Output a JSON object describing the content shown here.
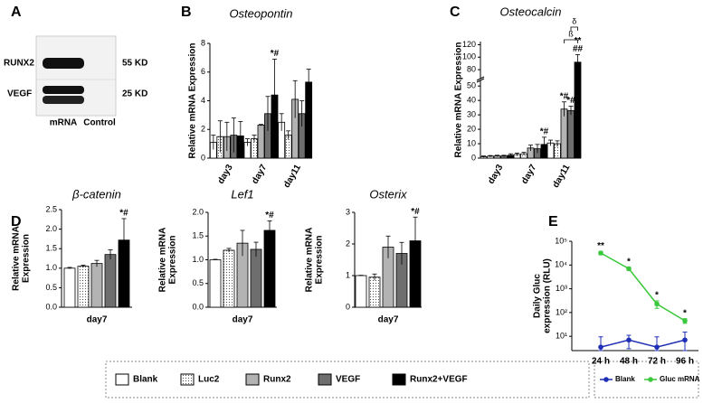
{
  "blot": {
    "panel": "A",
    "rows": [
      {
        "label": "RUNX2",
        "size": "55 KD"
      },
      {
        "label": "VEGF",
        "size": "25 KD"
      }
    ],
    "lanes": [
      "mRNA",
      "Control"
    ]
  },
  "chart_data": [
    {
      "type": "bar",
      "panel": "B",
      "title": "Osteopontin",
      "ylabel": "Relative mRNA Expression",
      "categories": [
        "day3",
        "day7",
        "day11"
      ],
      "ylim": [
        0,
        8
      ],
      "yticks": [
        0,
        2,
        4,
        6,
        8
      ],
      "series": [
        {
          "name": "Blank",
          "color": "#ffffff",
          "values": [
            1.1,
            1.1,
            2.5
          ],
          "errors": [
            0.5,
            0.25,
            0.6
          ]
        },
        {
          "name": "Luc2",
          "color": "#ffffff",
          "pattern": "dots",
          "values": [
            1.5,
            1.35,
            1.6
          ],
          "errors": [
            1.1,
            0.25,
            0.3
          ]
        },
        {
          "name": "Runx2",
          "color": "#b3b3b3",
          "values": [
            1.5,
            2.3,
            4.1
          ],
          "errors": [
            1.0,
            0.05,
            1.3
          ]
        },
        {
          "name": "VEGF",
          "color": "#6e6e6e",
          "values": [
            1.6,
            3.1,
            3.1
          ],
          "errors": [
            1.2,
            1.2,
            0.9
          ]
        },
        {
          "name": "Runx2+VEGF",
          "color": "#000000",
          "values": [
            1.55,
            4.4,
            5.3
          ],
          "errors": [
            1.0,
            2.5,
            0.9
          ],
          "annotations": [
            null,
            "*#",
            null
          ]
        }
      ]
    },
    {
      "type": "bar",
      "panel": "C",
      "title": "Osteocalcin",
      "ylabel": "Relative mRNA Expression",
      "categories": [
        "day3",
        "day7",
        "day11"
      ],
      "ylim": [
        0,
        125
      ],
      "ybreak": [
        52,
        70
      ],
      "yticks": [
        0,
        10,
        20,
        30,
        40,
        50,
        80,
        100,
        120
      ],
      "series": [
        {
          "name": "Blank",
          "color": "#ffffff",
          "values": [
            1,
            2.5,
            10.5
          ],
          "errors": [
            0.5,
            1,
            2
          ]
        },
        {
          "name": "Luc2",
          "color": "#ffffff",
          "pattern": "dots",
          "values": [
            1.3,
            3,
            10
          ],
          "errors": [
            0.5,
            1,
            2
          ]
        },
        {
          "name": "Runx2",
          "color": "#b3b3b3",
          "values": [
            1.5,
            7,
            34
          ],
          "errors": [
            0.5,
            2,
            5
          ],
          "annotations": [
            null,
            null,
            "*#"
          ]
        },
        {
          "name": "VEGF",
          "color": "#6e6e6e",
          "values": [
            1.5,
            6.5,
            33
          ],
          "errors": [
            0.5,
            3,
            3
          ],
          "annotations": [
            null,
            null,
            "*#"
          ]
        },
        {
          "name": "Runx2+VEGF",
          "color": "#000000",
          "values": [
            2,
            9.5,
            92
          ],
          "errors": [
            1,
            5,
            12
          ],
          "annotations": [
            null,
            "*#",
            [
              "**",
              "##"
            ]
          ]
        }
      ],
      "brackets": [
        {
          "label": "ß",
          "category": 2,
          "series": [
            2,
            4
          ]
        },
        {
          "label": "δ",
          "category": 2,
          "series": [
            3,
            4
          ]
        }
      ]
    },
    {
      "type": "bar",
      "panel": "D",
      "title": "β-catenin",
      "ylabel": [
        "Relative mRNA",
        "Expression"
      ],
      "categories": [
        "day7"
      ],
      "ylim": [
        0,
        2.5
      ],
      "yticks": [
        {
          "value": 0,
          "label": "0.0"
        },
        0.5,
        {
          "value": 1,
          "label": "1.0"
        },
        1.5,
        {
          "value": 2,
          "label": "2.0"
        },
        2.5
      ],
      "series": [
        {
          "name": "Blank",
          "color": "#ffffff",
          "values": [
            1.0
          ],
          "errors": [
            0.02
          ]
        },
        {
          "name": "Luc2",
          "color": "#ffffff",
          "pattern": "dots",
          "values": [
            1.05
          ],
          "errors": [
            0.03
          ]
        },
        {
          "name": "Runx2",
          "color": "#b3b3b3",
          "values": [
            1.12
          ],
          "errors": [
            0.08
          ]
        },
        {
          "name": "VEGF",
          "color": "#6e6e6e",
          "values": [
            1.35
          ],
          "errors": [
            0.12
          ]
        },
        {
          "name": "Runx2+VEGF",
          "color": "#000000",
          "values": [
            1.72
          ],
          "errors": [
            0.55
          ],
          "annotations": [
            "*#"
          ]
        }
      ]
    },
    {
      "type": "bar",
      "title": "Lef1",
      "ylabel": [
        "Relative mRNA",
        "Expression"
      ],
      "categories": [
        "day7"
      ],
      "ylim": [
        0,
        2
      ],
      "yticks": [
        {
          "value": 0,
          "label": "0.0"
        },
        0.5,
        {
          "value": 1,
          "label": "1.0"
        },
        1.5,
        {
          "value": 2,
          "label": "2.0"
        }
      ],
      "series": [
        {
          "name": "Blank",
          "color": "#ffffff",
          "values": [
            1.0
          ],
          "errors": [
            0.01
          ]
        },
        {
          "name": "Luc2",
          "color": "#ffffff",
          "pattern": "dots",
          "values": [
            1.2
          ],
          "errors": [
            0.04
          ]
        },
        {
          "name": "Runx2",
          "color": "#b3b3b3",
          "values": [
            1.35
          ],
          "errors": [
            0.27
          ]
        },
        {
          "name": "VEGF",
          "color": "#6e6e6e",
          "values": [
            1.22
          ],
          "errors": [
            0.15
          ]
        },
        {
          "name": "Runx2+VEGF",
          "color": "#000000",
          "values": [
            1.62
          ],
          "errors": [
            0.2
          ],
          "annotations": [
            "*#"
          ]
        }
      ]
    },
    {
      "type": "bar",
      "title": "Osterix",
      "ylabel": [
        "Relative mRNA",
        "Expression"
      ],
      "categories": [
        "day7"
      ],
      "ylim": [
        0,
        3
      ],
      "yticks": [
        0,
        1,
        2,
        3
      ],
      "series": [
        {
          "name": "Blank",
          "color": "#ffffff",
          "values": [
            1.0
          ],
          "errors": [
            0.01
          ]
        },
        {
          "name": "Luc2",
          "color": "#ffffff",
          "pattern": "dots",
          "values": [
            0.95
          ],
          "errors": [
            0.1
          ]
        },
        {
          "name": "Runx2",
          "color": "#b3b3b3",
          "values": [
            1.9
          ],
          "errors": [
            0.35
          ]
        },
        {
          "name": "VEGF",
          "color": "#6e6e6e",
          "values": [
            1.7
          ],
          "errors": [
            0.35
          ]
        },
        {
          "name": "Runx2+VEGF",
          "color": "#000000",
          "values": [
            2.1
          ],
          "errors": [
            0.75
          ],
          "annotations": [
            "*#"
          ]
        }
      ]
    },
    {
      "type": "line",
      "panel": "E",
      "ylabel": [
        "Daily Gluc",
        "expression (RLU)"
      ],
      "log": true,
      "categories": [
        "24 h",
        "48 h",
        "72 h",
        "96 h"
      ],
      "ylim": [
        2.5,
        100000
      ],
      "yticks": [
        {
          "value": 10,
          "label": "10¹"
        },
        {
          "value": 100,
          "label": "10²"
        },
        {
          "value": 1000,
          "label": "10³"
        },
        {
          "value": 10000,
          "label": "10⁴"
        },
        {
          "value": 100000,
          "label": "10⁵"
        }
      ],
      "series": [
        {
          "name": "Blank",
          "color": "#1f2fb5",
          "values": [
            3.5,
            7,
            3.5,
            7
          ],
          "errors": [
            6,
            4,
            6,
            8
          ]
        },
        {
          "name": "Gluc mRNA",
          "color": "#3cc83c",
          "values": [
            32000,
            7000,
            230,
            45
          ],
          "errors": [
            5000,
            1000,
            80,
            10
          ],
          "annotations": [
            "**",
            "*",
            "*",
            "*"
          ]
        }
      ]
    }
  ]
}
